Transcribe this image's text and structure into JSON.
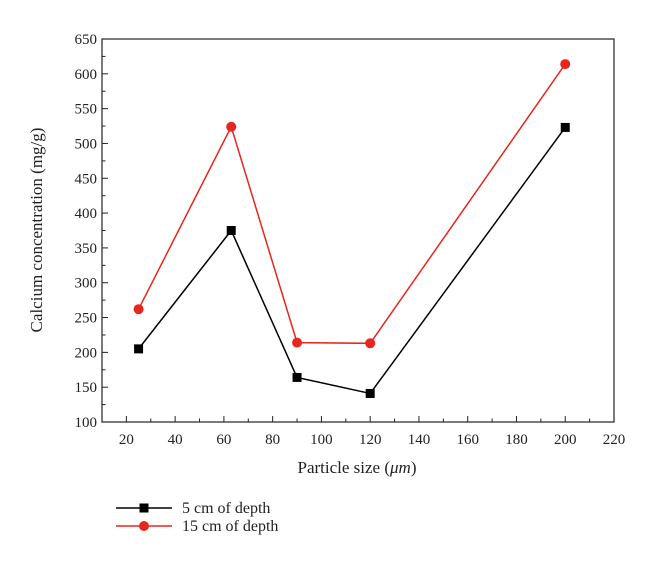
{
  "chart_data": {
    "type": "line",
    "xlabel_prefix": "Particle size (",
    "xlabel_unit": "μm",
    "xlabel_suffix": ")",
    "ylabel": "Calcium concentration (mg/g)",
    "xlim": [
      10,
      220
    ],
    "ylim": [
      100,
      650
    ],
    "xticks": [
      20,
      40,
      60,
      80,
      100,
      120,
      140,
      160,
      180,
      200,
      220
    ],
    "yticks": [
      100,
      150,
      200,
      250,
      300,
      350,
      400,
      450,
      500,
      550,
      600,
      650
    ],
    "grid": false,
    "legend_position": "bottom-left, below plot",
    "series": [
      {
        "name": "5 cm of depth",
        "color": "#000000",
        "marker": "square",
        "x": [
          25,
          63,
          90,
          120,
          200
        ],
        "y": [
          205,
          375,
          164,
          141,
          523
        ]
      },
      {
        "name": "15 cm of depth",
        "color": "#e8251f",
        "marker": "circle",
        "x": [
          25,
          63,
          90,
          120,
          200
        ],
        "y": [
          262,
          524,
          214,
          213,
          614
        ]
      }
    ]
  }
}
